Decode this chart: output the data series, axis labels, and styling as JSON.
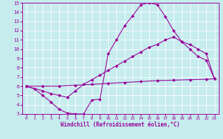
{
  "xlabel": "Windchill (Refroidissement éolien,°C)",
  "xlim": [
    -0.5,
    23.5
  ],
  "ylim": [
    3,
    15
  ],
  "xticks": [
    0,
    1,
    2,
    3,
    4,
    5,
    6,
    7,
    8,
    9,
    10,
    11,
    12,
    13,
    14,
    15,
    16,
    17,
    18,
    19,
    20,
    21,
    22,
    23
  ],
  "yticks": [
    3,
    4,
    5,
    6,
    7,
    8,
    9,
    10,
    11,
    12,
    13,
    14,
    15
  ],
  "bg_color": "#c6ecee",
  "line_color": "#990099",
  "grid_color": "#ffffff",
  "curve1_x": [
    0,
    1,
    2,
    3,
    4,
    5,
    6,
    7,
    8,
    9,
    10,
    11,
    12,
    13,
    14,
    15,
    16,
    17,
    18,
    19,
    20,
    21,
    22,
    23
  ],
  "curve1_y": [
    6.0,
    5.7,
    5.0,
    4.3,
    3.5,
    3.1,
    3.0,
    3.0,
    4.5,
    4.6,
    9.5,
    11.0,
    12.5,
    13.6,
    14.8,
    15.0,
    14.8,
    13.5,
    12.0,
    10.8,
    10.0,
    9.2,
    8.8,
    6.8
  ],
  "curve2_x": [
    0,
    2,
    3,
    4,
    5,
    6,
    7,
    8,
    9,
    10,
    11,
    12,
    13,
    14,
    15,
    16,
    17,
    18,
    19,
    20,
    21,
    22,
    23
  ],
  "curve2_y": [
    6.0,
    5.5,
    5.2,
    5.0,
    4.8,
    5.5,
    6.2,
    6.7,
    7.2,
    7.7,
    8.2,
    8.7,
    9.2,
    9.7,
    10.2,
    10.5,
    11.0,
    11.3,
    10.8,
    10.5,
    10.0,
    9.5,
    6.8
  ],
  "curve3_x": [
    0,
    2,
    4,
    6,
    8,
    10,
    12,
    14,
    16,
    18,
    20,
    22,
    23
  ],
  "curve3_y": [
    6.0,
    6.0,
    6.0,
    6.1,
    6.2,
    6.3,
    6.4,
    6.5,
    6.6,
    6.65,
    6.7,
    6.75,
    6.8
  ]
}
